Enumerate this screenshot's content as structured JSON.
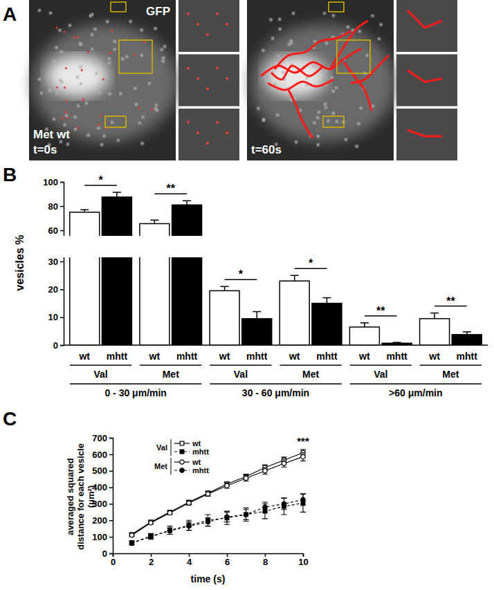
{
  "chart_data": [
    {
      "type": "image",
      "title": "A",
      "images": [
        {
          "top_label": "GFP",
          "bottom_label": [
            "Met wt",
            "t=0s"
          ]
        },
        {
          "bottom_label": [
            "t=60s"
          ]
        }
      ]
    },
    {
      "type": "bar",
      "title": "B",
      "y_label": "vesicles %",
      "categories": [
        "Val",
        "Met",
        "Val",
        "Met",
        "Val",
        "Met"
      ],
      "group_labels": [
        "0 - 30 μm/min",
        "30 - 60 μm/min",
        ">60 μm/min"
      ],
      "series": [
        {
          "name": "wt",
          "color": "#ffffff",
          "values": [
            75,
            65.5,
            19.5,
            23,
            6.5,
            9.5
          ],
          "errors": [
            2,
            3,
            1.5,
            2,
            1.5,
            2
          ]
        },
        {
          "name": "mhtt",
          "color": "#000000",
          "values": [
            87.5,
            81,
            9.5,
            15,
            0.7,
            3.8
          ],
          "errors": [
            4,
            3.5,
            2.5,
            2,
            0.3,
            1
          ]
        }
      ],
      "significance": [
        "*",
        "**",
        "*",
        "*",
        "**",
        "**"
      ],
      "ylim": [
        0,
        100
      ],
      "yticks": [
        0,
        10,
        20,
        30,
        60,
        80,
        100
      ],
      "ybreak": [
        30,
        60
      ]
    },
    {
      "type": "line",
      "title": "C",
      "x_label": "time (s)",
      "y_label": [
        "averaged squared",
        "distance for each vesicle",
        "(μm²)"
      ],
      "x": [
        1,
        2,
        3,
        4,
        5,
        6,
        7,
        8,
        9,
        10
      ],
      "series": [
        {
          "name": "wt",
          "group": "Val",
          "color": "#000000",
          "marker": "square-open",
          "line_style": "solid",
          "values": [
            115,
            190,
            250,
            310,
            365,
            420,
            465,
            520,
            565,
            610
          ],
          "errors": [
            8,
            8,
            10,
            10,
            12,
            14,
            15,
            16,
            18,
            20
          ]
        },
        {
          "name": "mhtt",
          "group": "Val",
          "color": "#000000",
          "marker": "square",
          "line_style": "dashed",
          "values": [
            65,
            100,
            140,
            170,
            200,
            215,
            235,
            255,
            285,
            305
          ],
          "errors": [
            10,
            15,
            25,
            30,
            35,
            40,
            40,
            45,
            50,
            55
          ]
        },
        {
          "name": "wt",
          "group": "Met",
          "color": "#000000",
          "marker": "circle-open",
          "line_style": "solid",
          "values": [
            110,
            185,
            245,
            305,
            360,
            410,
            455,
            500,
            545,
            585
          ],
          "errors": [
            8,
            8,
            10,
            12,
            14,
            16,
            18,
            20,
            22,
            25
          ]
        },
        {
          "name": "mhtt",
          "group": "Met",
          "color": "#000000",
          "marker": "circle",
          "line_style": "dashed",
          "values": [
            60,
            105,
            135,
            165,
            190,
            220,
            235,
            280,
            300,
            325
          ],
          "errors": [
            10,
            15,
            20,
            25,
            25,
            30,
            30,
            30,
            35,
            35
          ]
        }
      ],
      "xlim": [
        0,
        10
      ],
      "xticks": [
        0,
        2,
        4,
        6,
        8,
        10
      ],
      "ylim": [
        0,
        700
      ],
      "yticks": [
        0,
        100,
        200,
        300,
        400,
        500,
        600,
        700
      ],
      "legend": "top-left",
      "annotations": [
        {
          "text": "***",
          "x": 10,
          "y": 660
        }
      ]
    }
  ]
}
